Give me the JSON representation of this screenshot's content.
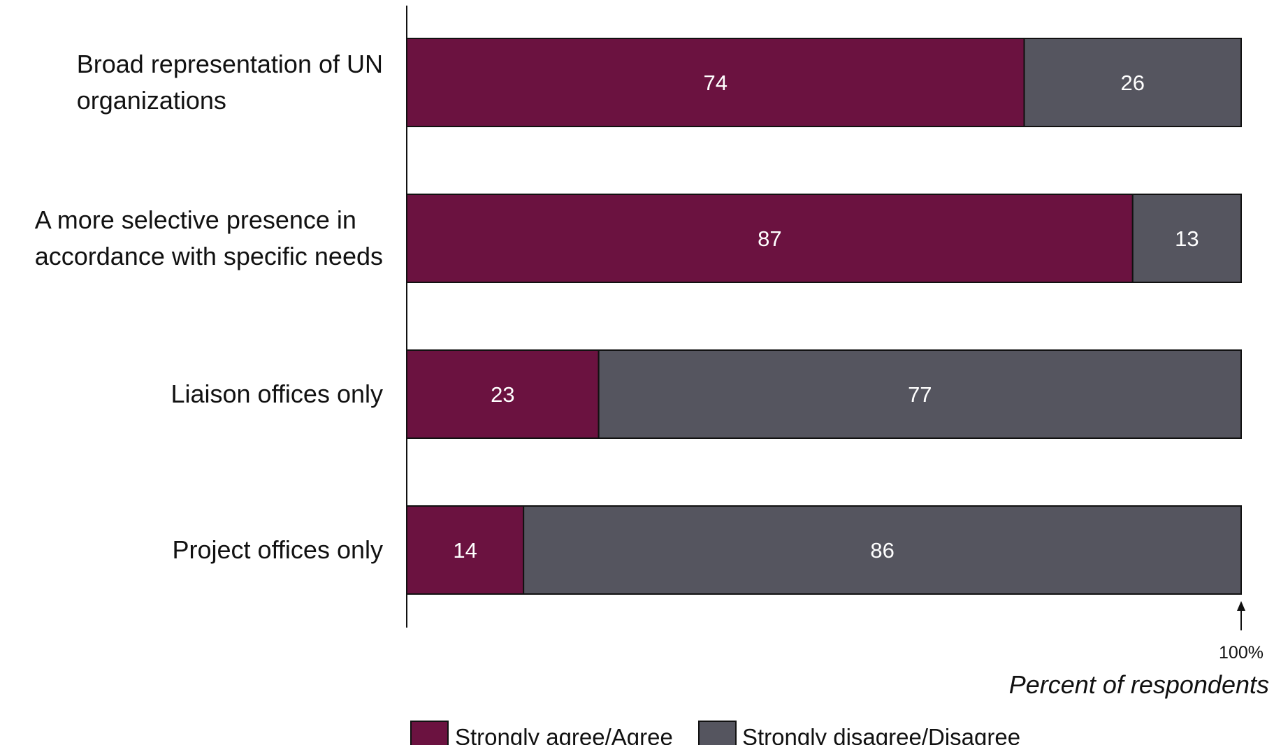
{
  "chart_data": {
    "type": "bar",
    "orientation": "horizontal",
    "stacked": true,
    "categories": [
      [
        "Broad representation of UN",
        "organizations"
      ],
      [
        "A more selective presence in",
        "accordance with specific needs"
      ],
      [
        "Liaison offices only"
      ],
      [
        "Project offices only"
      ]
    ],
    "series": [
      {
        "name": "Strongly agree/Agree",
        "color": "#6b1240",
        "values": [
          74,
          87,
          23,
          14
        ]
      },
      {
        "name": "Strongly disagree/Disagree",
        "color": "#55555f",
        "values": [
          26,
          13,
          77,
          86
        ]
      }
    ],
    "xlim": [
      0,
      100
    ],
    "xtick_label": "100%",
    "xlabel": "Percent of respondents",
    "legend_position": "bottom",
    "grid": false
  }
}
